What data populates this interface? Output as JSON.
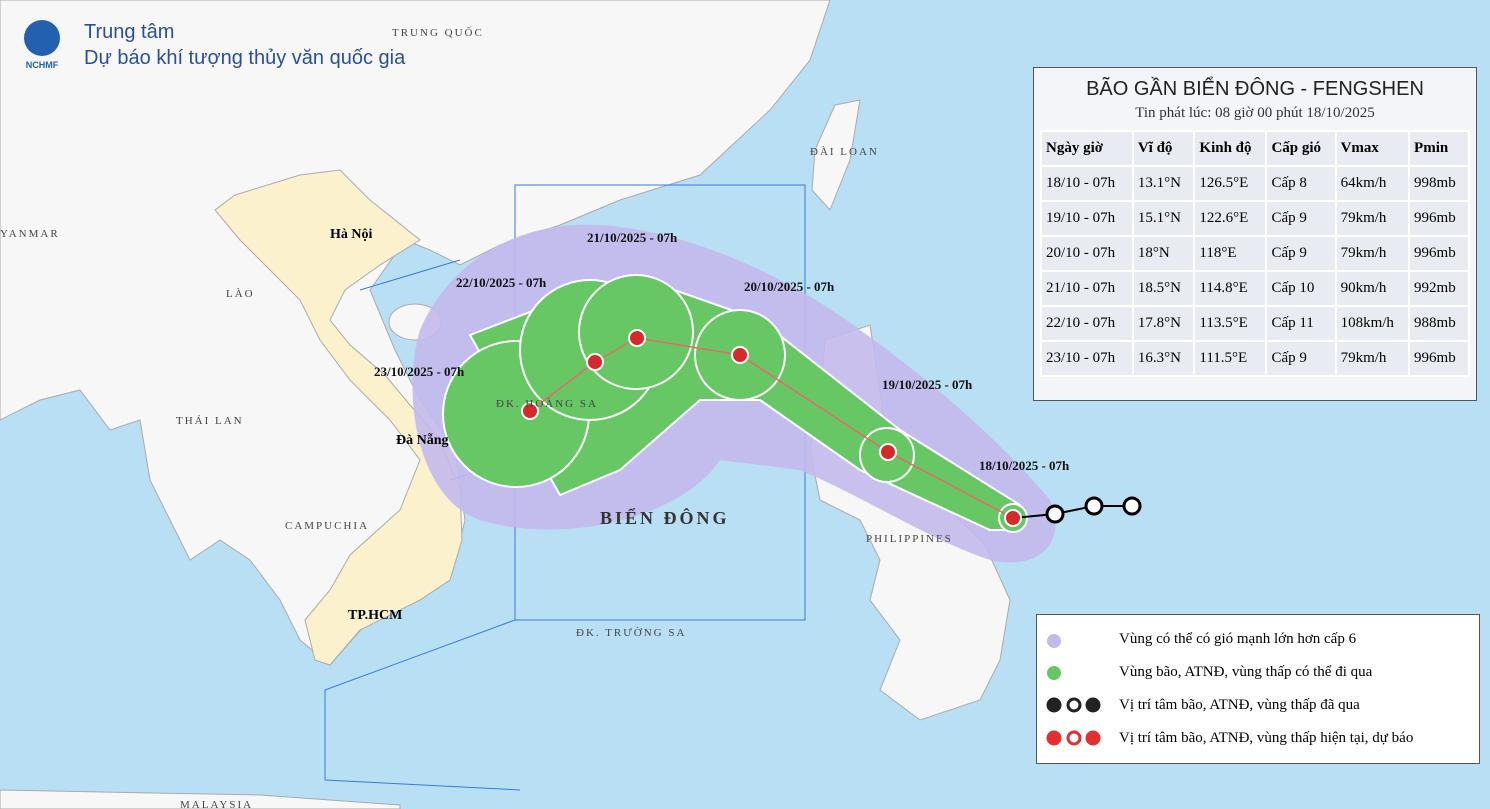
{
  "header": {
    "logo": "NCHMF",
    "line1": "Trung tâm",
    "line2": "Dự báo khí tượng thủy văn quốc gia"
  },
  "bulletin": {
    "title": "BÃO GẦN BIỂN ĐÔNG - FENGSHEN",
    "issued": "Tin phát lúc: 08 giờ 00 phút 18/10/2025",
    "columns": [
      "Ngày giờ",
      "Vĩ độ",
      "Kinh độ",
      "Cấp gió",
      "Vmax",
      "Pmin"
    ],
    "rows": [
      [
        "18/10 - 07h",
        "13.1°N",
        "126.5°E",
        "Cấp 8",
        "64km/h",
        "998mb"
      ],
      [
        "19/10 - 07h",
        "15.1°N",
        "122.6°E",
        "Cấp 9",
        "79km/h",
        "996mb"
      ],
      [
        "20/10 - 07h",
        "18°N",
        "118°E",
        "Cấp 9",
        "79km/h",
        "996mb"
      ],
      [
        "21/10 - 07h",
        "18.5°N",
        "114.8°E",
        "Cấp 10",
        "90km/h",
        "992mb"
      ],
      [
        "22/10 - 07h",
        "17.8°N",
        "113.5°E",
        "Cấp 11",
        "108km/h",
        "988mb"
      ],
      [
        "23/10 - 07h",
        "16.3°N",
        "111.5°E",
        "Cấp 9",
        "79km/h",
        "996mb"
      ]
    ]
  },
  "legend": {
    "items": [
      "Vùng có thể có gió mạnh lớn hơn cấp 6",
      "Vùng bão, ATNĐ, vùng thấp có thể đi qua",
      "Vị trí tâm bão, ATNĐ, vùng thấp đã qua",
      "Vị trí tâm bão, ATNĐ, vùng thấp hiện tại, dự báo"
    ]
  },
  "map_labels": {
    "places": [
      "TRUNG QUỐC",
      "ĐÀI LOAN",
      "YANMAR",
      "Hà Nội",
      "LÀO",
      "THÁI LAN",
      "Đà Nẵng",
      "CAMPUCHIA",
      "TP.HCM",
      "ĐK. HOÀNG SA",
      "BIỂN ĐÔNG",
      "ĐK. TRƯỜNG SA",
      "PHILIPPINES",
      "MALAYSIA"
    ],
    "track": [
      "18/10/2025 - 07h",
      "19/10/2025 - 07h",
      "20/10/2025 - 07h",
      "21/10/2025 - 07h",
      "22/10/2025 - 07h",
      "23/10/2025 - 07h"
    ]
  }
}
